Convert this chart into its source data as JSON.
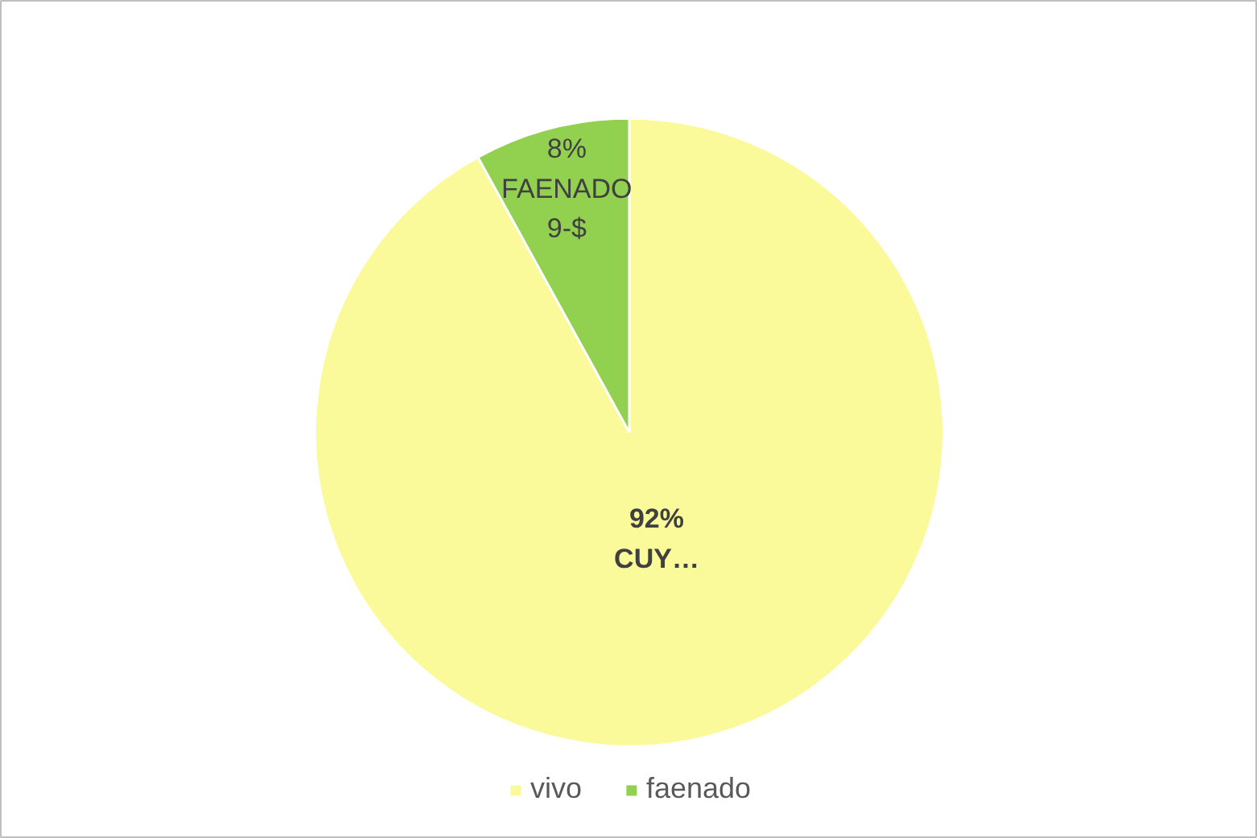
{
  "chart_data": {
    "type": "pie",
    "categories": [
      "vivo",
      "faenado"
    ],
    "values": [
      92,
      8
    ],
    "colors": [
      "#fafa9a",
      "#92d050"
    ],
    "value_labels": [
      "92%\nCUY…",
      "8%\nFAENADO\n9-$"
    ],
    "legend": "bottom"
  }
}
